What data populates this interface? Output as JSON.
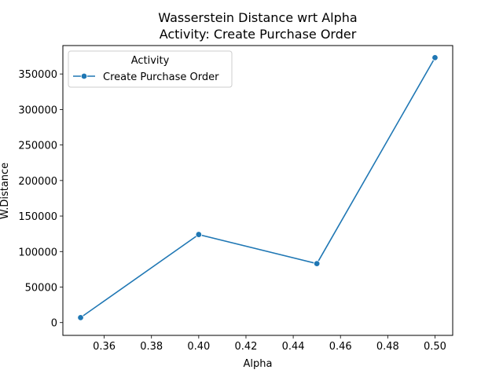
{
  "chart_data": {
    "type": "line",
    "title": "Wasserstein Distance wrt Alpha",
    "subtitle": "Activity: Create Purchase Order",
    "xlabel": "Alpha",
    "ylabel": "W.Distance",
    "xlim": [
      0.3425,
      0.5075
    ],
    "ylim": [
      -18000,
      390000
    ],
    "x_ticks": [
      0.36,
      0.38,
      0.4,
      0.42,
      0.44,
      0.46,
      0.48,
      0.5
    ],
    "x_tick_labels": [
      "0.36",
      "0.38",
      "0.40",
      "0.42",
      "0.44",
      "0.46",
      "0.48",
      "0.50"
    ],
    "y_ticks": [
      0,
      50000,
      100000,
      150000,
      200000,
      250000,
      300000,
      350000
    ],
    "y_tick_labels": [
      "0",
      "50000",
      "100000",
      "150000",
      "200000",
      "250000",
      "300000",
      "350000"
    ],
    "grid": false,
    "legend": {
      "title": "Activity",
      "placement": "top-left"
    },
    "series": [
      {
        "name": "Create Purchase Order",
        "color": "#1f77b4",
        "marker": "circle",
        "x": [
          0.35,
          0.4,
          0.45,
          0.5
        ],
        "y": [
          7000,
          124000,
          83000,
          373000
        ]
      }
    ]
  }
}
